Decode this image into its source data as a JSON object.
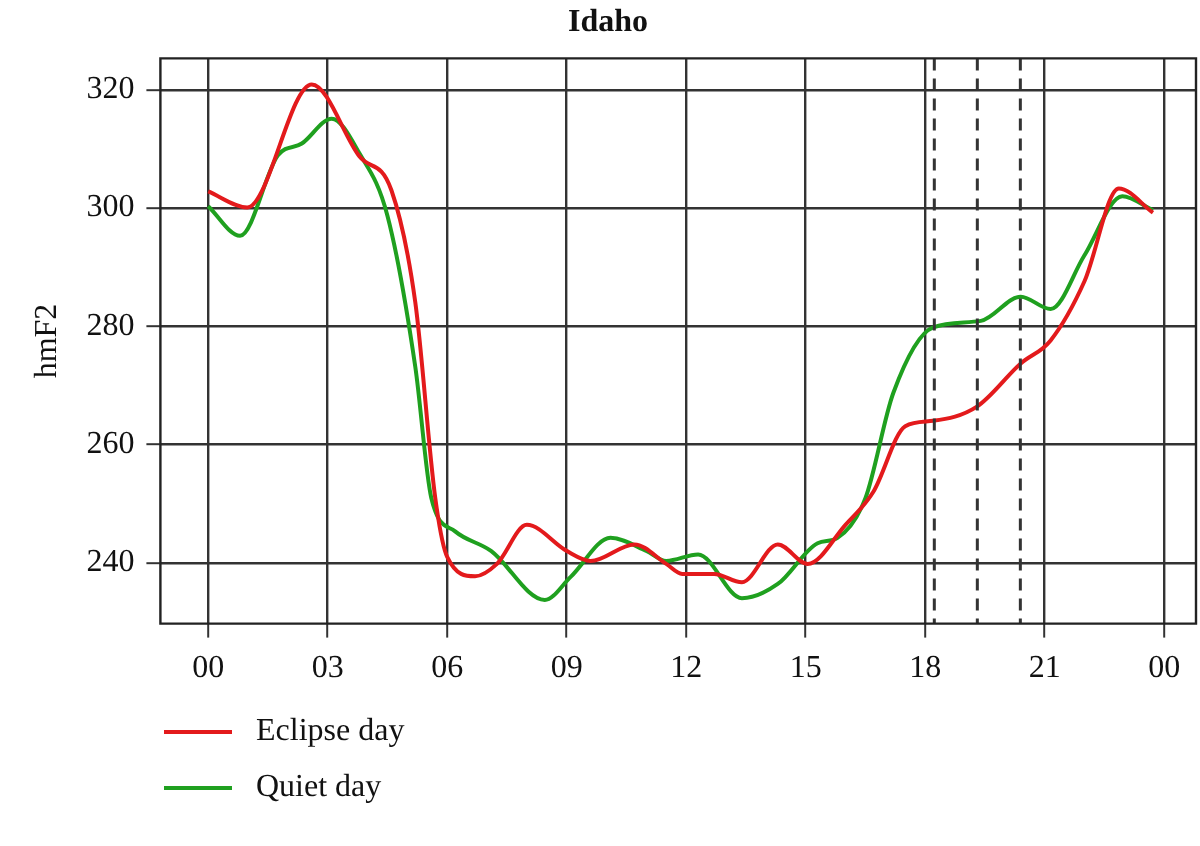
{
  "chart_data": {
    "type": "line",
    "title": "Idaho",
    "ylabel": "hmF2",
    "xlim": [
      -1.2,
      24.8
    ],
    "ylim": [
      229.7,
      325.3
    ],
    "xticks": [
      {
        "value": 0,
        "label": "00"
      },
      {
        "value": 3,
        "label": "03"
      },
      {
        "value": 6,
        "label": "06"
      },
      {
        "value": 9,
        "label": "09"
      },
      {
        "value": 12,
        "label": "12"
      },
      {
        "value": 15,
        "label": "15"
      },
      {
        "value": 18,
        "label": "18"
      },
      {
        "value": 21,
        "label": "21"
      },
      {
        "value": 24,
        "label": "00"
      }
    ],
    "yticks": [
      240,
      260,
      280,
      300,
      320
    ],
    "grid": true,
    "legend": "bottom left",
    "line_style": "solid",
    "marker": "none",
    "ref_lines": [
      {
        "axis": "x",
        "value": 18.23,
        "color": "#333333",
        "line_style": "dashed"
      },
      {
        "axis": "x",
        "value": 19.31,
        "color": "#333333",
        "line_style": "dashed"
      },
      {
        "axis": "x",
        "value": 20.39,
        "color": "#333333",
        "line_style": "dashed"
      }
    ],
    "series": [
      {
        "name": "Eclipse day",
        "color": "#e31a1c",
        "x": [
          0,
          0.98,
          2.6,
          3.8,
          4.6,
          5.2,
          5.7,
          6.0,
          6.7,
          7.25,
          8.0,
          9.0,
          9.6,
          10.7,
          11.5,
          11.9,
          12.7,
          13.4,
          14.3,
          15.05,
          16.0,
          16.7,
          17.5,
          18.2,
          19.3,
          20.4,
          21.15,
          22.0,
          22.86,
          23.72
        ],
        "values": [
          302.8,
          300.1,
          320.9,
          308.7,
          303,
          284,
          251,
          241,
          237.7,
          239.8,
          246.4,
          242,
          240.3,
          243.1,
          239.8,
          238.1,
          238.1,
          236.7,
          243.1,
          239.8,
          246.4,
          252,
          263.1,
          264,
          266.4,
          273.7,
          277.6,
          287.6,
          303.3,
          299.2
        ]
      },
      {
        "name": "Quiet day",
        "color": "#1fa01f",
        "x": [
          0,
          0.8,
          1.75,
          2.35,
          3.1,
          3.8,
          4.5,
          5.2,
          5.6,
          6.2,
          7.1,
          8.45,
          9.1,
          10.1,
          11.0,
          11.5,
          12.3,
          13.4,
          14.3,
          15.3,
          15.8,
          16.5,
          17.2,
          18.2,
          19.4,
          20.4,
          21.15,
          22.0,
          22.95,
          23.72
        ],
        "values": [
          300.3,
          295.3,
          308.9,
          310.9,
          315.1,
          309.2,
          298.7,
          273.1,
          251,
          245.3,
          242,
          233.7,
          237.6,
          244.2,
          242,
          240.3,
          241.4,
          234,
          236.4,
          243.3,
          244.2,
          250.9,
          268.7,
          279.8,
          280.9,
          285,
          282.9,
          292,
          302,
          299.6
        ]
      }
    ]
  }
}
